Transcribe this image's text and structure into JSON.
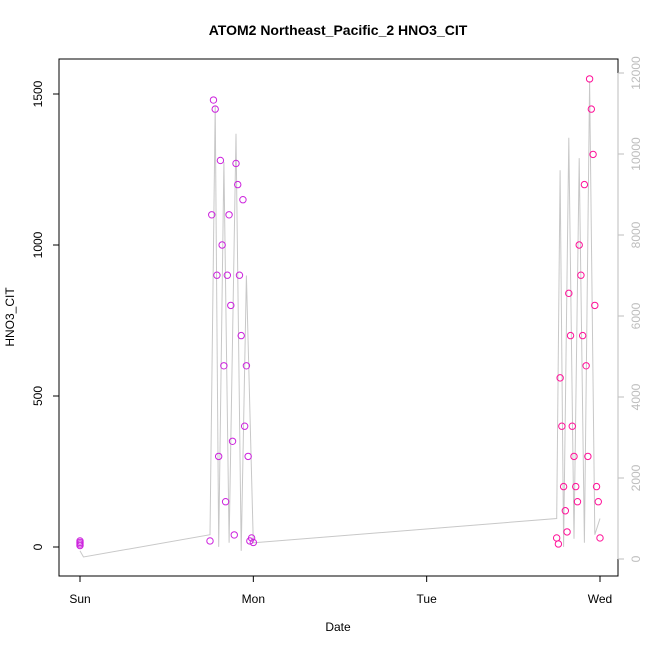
{
  "chart_data": {
    "type": "scatter",
    "title": "ATOM2 Northeast_Pacific_2 HNO3_CIT",
    "xlabel": "Date",
    "ylabel": "HNO3_CIT",
    "x_tick_labels": [
      "Sun",
      "Mon",
      "Tue",
      "Wed"
    ],
    "x_domain_days": [
      0,
      3
    ],
    "ylim": [
      -95,
      1600
    ],
    "y_ticks": [
      0,
      500,
      1000,
      1500
    ],
    "y2lim": [
      -800,
      12800
    ],
    "y2_ticks": [
      0,
      2000,
      4000,
      6000,
      8000,
      10000,
      12000
    ],
    "grid": false,
    "point_color_early": "#cc22dd",
    "point_color_late": "#ff1199",
    "line_color": "#c8c8c8",
    "series": [
      {
        "x": [
          0.0,
          0.0,
          0.0,
          0.0,
          0.75,
          0.76,
          0.77,
          0.78,
          0.79,
          0.8,
          0.81,
          0.82,
          0.83,
          0.84,
          0.85,
          0.86,
          0.87,
          0.88,
          0.89,
          0.9,
          0.91,
          0.92,
          0.93,
          0.94,
          0.95,
          0.96,
          0.97,
          0.98,
          0.99,
          1.0,
          2.75,
          2.76,
          2.77,
          2.78,
          2.79,
          2.8,
          2.81,
          2.82,
          2.83,
          2.84,
          2.85,
          2.86,
          2.87,
          2.88,
          2.89,
          2.9,
          2.91,
          2.92,
          2.93,
          2.94,
          2.95,
          2.96,
          2.97,
          2.98,
          2.99,
          3.0
        ],
        "y": [
          5,
          15,
          20,
          10,
          20,
          1100,
          1480,
          1450,
          900,
          300,
          1280,
          1000,
          600,
          150,
          900,
          1100,
          800,
          350,
          40,
          1270,
          1200,
          900,
          700,
          1150,
          400,
          600,
          300,
          20,
          30,
          15,
          30,
          10,
          560,
          400,
          200,
          120,
          50,
          840,
          700,
          400,
          300,
          200,
          150,
          1000,
          900,
          700,
          1200,
          600,
          300,
          1550,
          1450,
          1300,
          800,
          200,
          150,
          30
        ]
      }
    ],
    "line_series": {
      "x": [
        0.0,
        0.02,
        0.75,
        0.78,
        0.8,
        0.83,
        0.86,
        0.9,
        0.93,
        0.96,
        1.0,
        2.75,
        2.77,
        2.79,
        2.82,
        2.85,
        2.88,
        2.91,
        2.94,
        2.97,
        3.0
      ],
      "y2": [
        200,
        50,
        600,
        11200,
        300,
        9800,
        400,
        10500,
        200,
        7000,
        400,
        1000,
        9600,
        300,
        10400,
        500,
        9900,
        400,
        11800,
        600,
        1000
      ]
    }
  }
}
